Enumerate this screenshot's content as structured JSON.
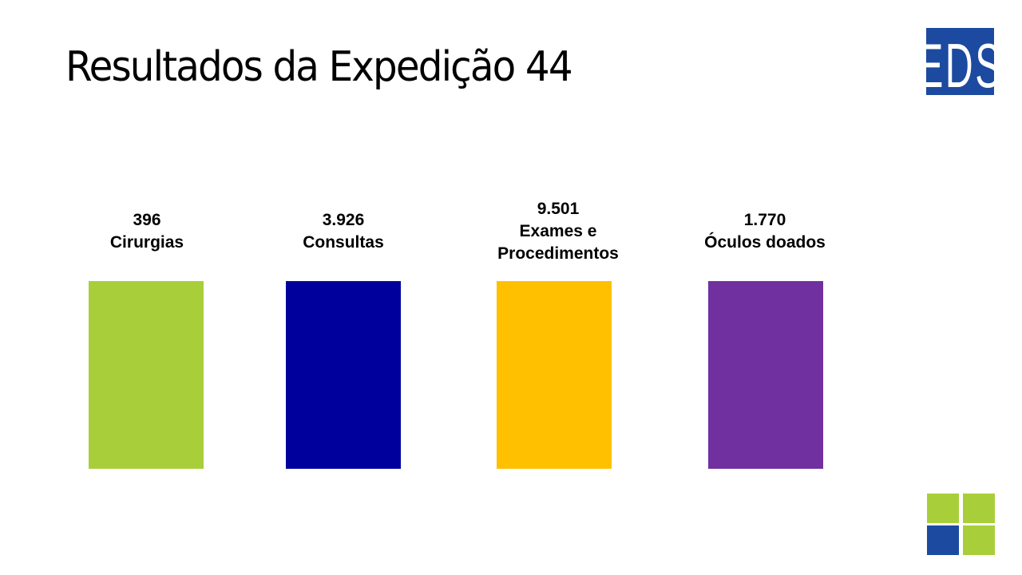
{
  "title": "Resultados da Expedição 44",
  "logo": {
    "text": "EDS",
    "color": "#1c4aa0"
  },
  "stats": [
    {
      "value": "396",
      "label_lines": [
        "Cirurgias"
      ],
      "color": "#a8cf3a"
    },
    {
      "value": "3.926",
      "label_lines": [
        "Consultas"
      ],
      "color": "#00009c"
    },
    {
      "value": "9.501",
      "label_lines": [
        "Exames e",
        "Procedimentos"
      ],
      "color": "#ffc000"
    },
    {
      "value": "1.770",
      "label_lines": [
        "Óculos doados"
      ],
      "color": "#7030a0"
    }
  ],
  "corner_squares": [
    "#a8cf3a",
    "#a8cf3a",
    "#1c4aa0",
    "#a8cf3a"
  ]
}
